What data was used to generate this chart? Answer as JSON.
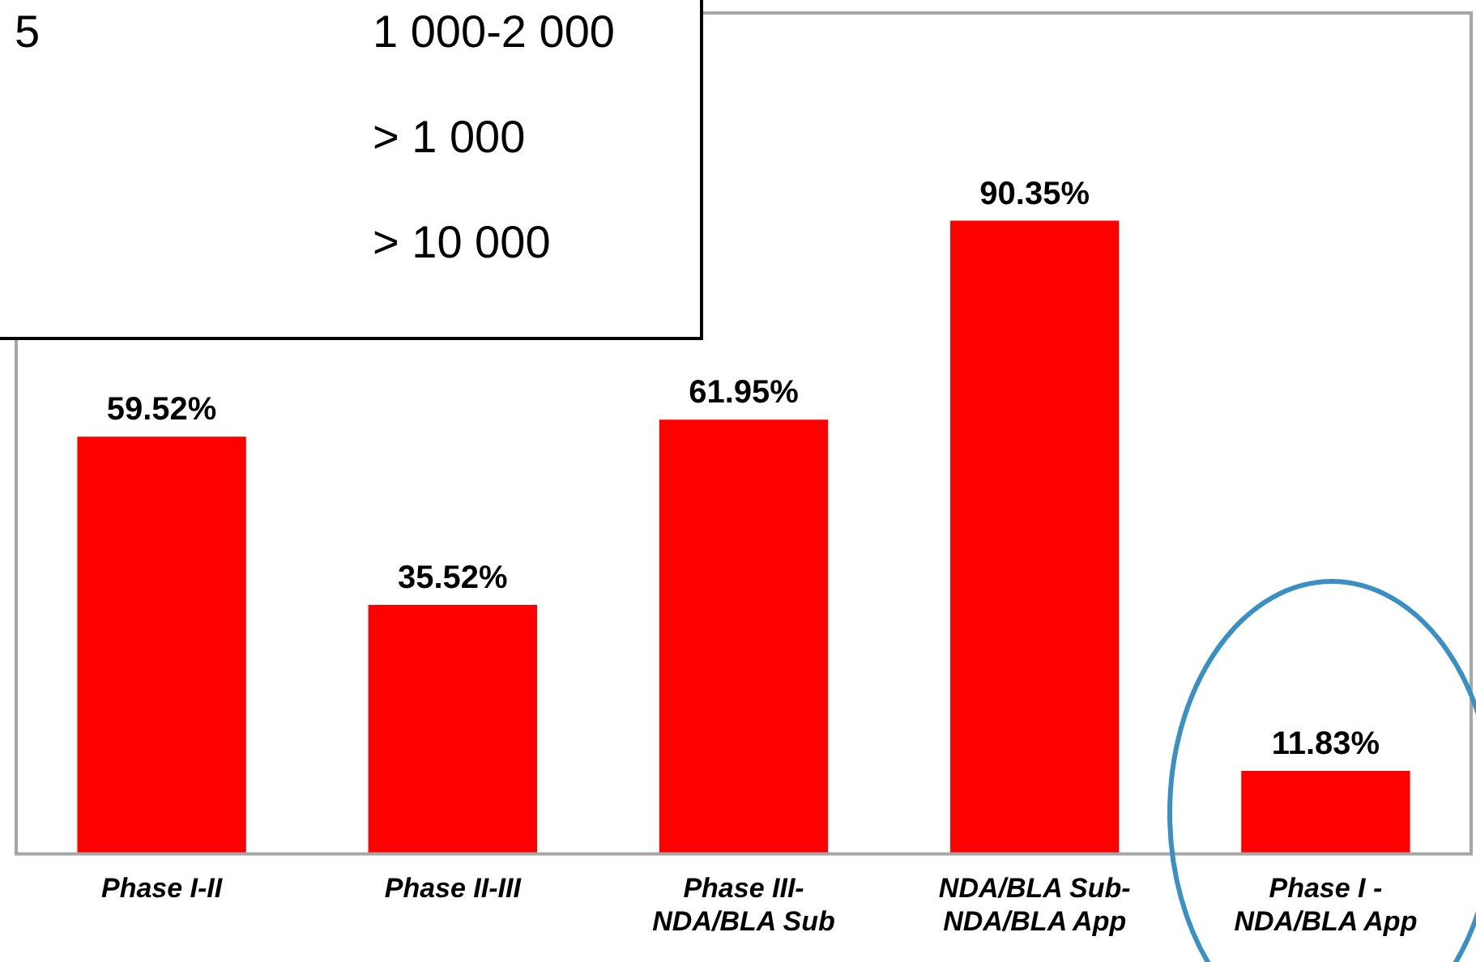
{
  "chart_data": {
    "type": "bar",
    "categories": [
      "Phase I-II",
      "Phase II-III",
      "Phase III-\nNDA/BLA Sub",
      "NDA/BLA Sub-\nNDA/BLA App",
      "Phase I -\nNDA/BLA App"
    ],
    "values": [
      59.52,
      35.52,
      61.95,
      90.35,
      11.83
    ],
    "value_labels": [
      "59.52%",
      "35.52%",
      "61.95%",
      "90.35%",
      "11.83%"
    ],
    "color": "#ff0000",
    "annotations": [
      "5",
      "1 000-2 000",
      "> 1 000",
      "> 10 000"
    ]
  }
}
